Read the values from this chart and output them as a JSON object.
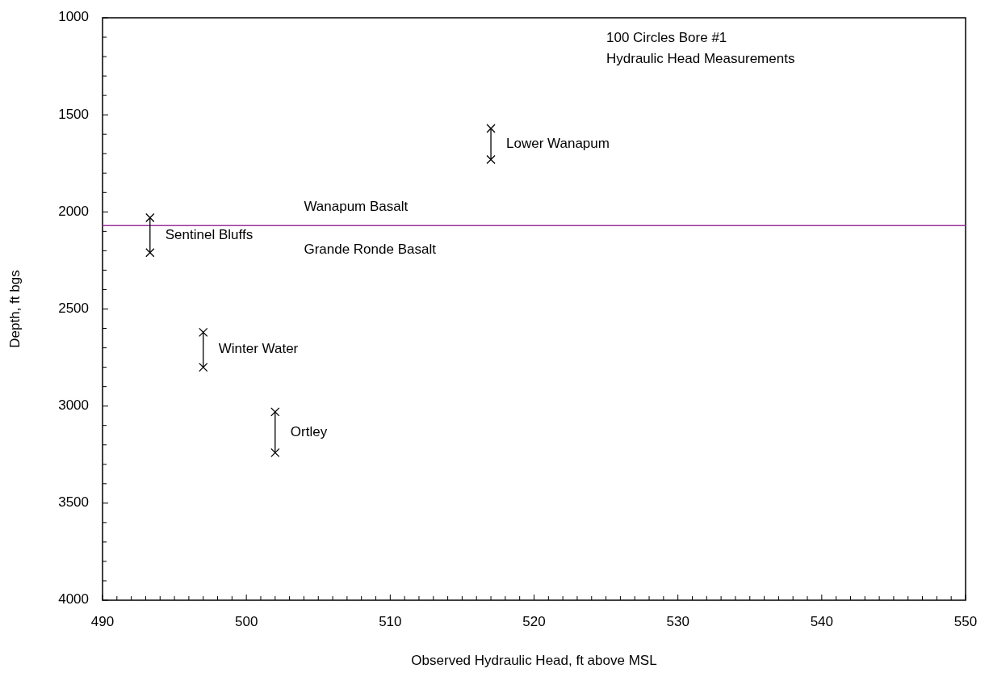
{
  "chart_data": {
    "type": "line",
    "title": "100 Circles Bore #1",
    "subtitle": "Hydraulic Head Measurements",
    "xlabel": "Observed Hydraulic Head, ft above MSL",
    "ylabel": "Depth, ft bgs",
    "xlim": [
      490,
      550
    ],
    "ylim": [
      4000,
      1000
    ],
    "xticks": [
      490,
      {
        "value": 491,
        "label": null
      },
      {
        "value": 492,
        "label": null
      },
      {
        "value": 493,
        "label": null
      },
      {
        "value": 494,
        "label": null
      },
      {
        "value": 495,
        "label": null
      },
      {
        "value": 496,
        "label": null
      },
      {
        "value": 497,
        "label": null
      },
      {
        "value": 498,
        "label": null
      },
      {
        "value": 499,
        "label": null
      },
      500,
      {
        "value": 501,
        "label": null
      },
      {
        "value": 502,
        "label": null
      },
      {
        "value": 503,
        "label": null
      },
      {
        "value": 504,
        "label": null
      },
      {
        "value": 505,
        "label": null
      },
      {
        "value": 506,
        "label": null
      },
      {
        "value": 507,
        "label": null
      },
      {
        "value": 508,
        "label": null
      },
      {
        "value": 509,
        "label": null
      },
      510,
      {
        "value": 511,
        "label": null
      },
      {
        "value": 512,
        "label": null
      },
      {
        "value": 513,
        "label": null
      },
      {
        "value": 514,
        "label": null
      },
      {
        "value": 515,
        "label": null
      },
      {
        "value": 516,
        "label": null
      },
      {
        "value": 517,
        "label": null
      },
      {
        "value": 518,
        "label": null
      },
      {
        "value": 519,
        "label": null
      },
      520,
      {
        "value": 521,
        "label": null
      },
      {
        "value": 522,
        "label": null
      },
      {
        "value": 523,
        "label": null
      },
      {
        "value": 524,
        "label": null
      },
      {
        "value": 525,
        "label": null
      },
      {
        "value": 526,
        "label": null
      },
      {
        "value": 527,
        "label": null
      },
      {
        "value": 528,
        "label": null
      },
      {
        "value": 529,
        "label": null
      },
      530,
      {
        "value": 531,
        "label": null
      },
      {
        "value": 532,
        "label": null
      },
      {
        "value": 533,
        "label": null
      },
      {
        "value": 534,
        "label": null
      },
      {
        "value": 535,
        "label": null
      },
      {
        "value": 536,
        "label": null
      },
      {
        "value": 537,
        "label": null
      },
      {
        "value": 538,
        "label": null
      },
      {
        "value": 539,
        "label": null
      },
      540,
      {
        "value": 541,
        "label": null
      },
      {
        "value": 542,
        "label": null
      },
      {
        "value": 543,
        "label": null
      },
      {
        "value": 544,
        "label": null
      },
      {
        "value": 545,
        "label": null
      },
      {
        "value": 546,
        "label": null
      },
      {
        "value": 547,
        "label": null
      },
      {
        "value": 548,
        "label": null
      },
      {
        "value": 549,
        "label": null
      },
      550
    ],
    "yticks": [
      1000,
      {
        "value": 1100,
        "label": null
      },
      {
        "value": 1200,
        "label": null
      },
      {
        "value": 1300,
        "label": null
      },
      {
        "value": 1400,
        "label": null
      },
      1500,
      {
        "value": 1600,
        "label": null
      },
      {
        "value": 1700,
        "label": null
      },
      {
        "value": 1800,
        "label": null
      },
      {
        "value": 1900,
        "label": null
      },
      2000,
      {
        "value": 2100,
        "label": null
      },
      {
        "value": 2200,
        "label": null
      },
      {
        "value": 2300,
        "label": null
      },
      {
        "value": 2400,
        "label": null
      },
      2500,
      {
        "value": 2600,
        "label": null
      },
      {
        "value": 2700,
        "label": null
      },
      {
        "value": 2800,
        "label": null
      },
      {
        "value": 2900,
        "label": null
      },
      3000,
      {
        "value": 3100,
        "label": null
      },
      {
        "value": 3200,
        "label": null
      },
      {
        "value": 3300,
        "label": null
      },
      {
        "value": 3400,
        "label": null
      },
      3500,
      {
        "value": 3600,
        "label": null
      },
      {
        "value": 3700,
        "label": null
      },
      {
        "value": 3800,
        "label": null
      },
      {
        "value": 3900,
        "label": null
      },
      4000
    ],
    "grid": false,
    "marker": "cross",
    "line_style": "solid",
    "series": [
      {
        "name": "Lower Wanapum",
        "color": "#000000",
        "x": [
          517,
          517
        ],
        "values": [
          1570,
          1730
        ]
      },
      {
        "name": "Sentinel Bluffs",
        "color": "#000000",
        "x": [
          493.3,
          493.3
        ],
        "values": [
          2030,
          2210
        ]
      },
      {
        "name": "Winter Water",
        "color": "#000000",
        "x": [
          497,
          497
        ],
        "values": [
          2620,
          2800
        ]
      },
      {
        "name": "Ortley",
        "color": "#000000",
        "x": [
          502,
          502
        ],
        "values": [
          3030,
          3240
        ]
      }
    ],
    "ref_lines": [
      {
        "axis": "y",
        "value": 2070,
        "label": "Wanapum Basalt",
        "color": "#993399"
      }
    ],
    "annotations": [
      "Grande Ronde Basalt"
    ]
  }
}
